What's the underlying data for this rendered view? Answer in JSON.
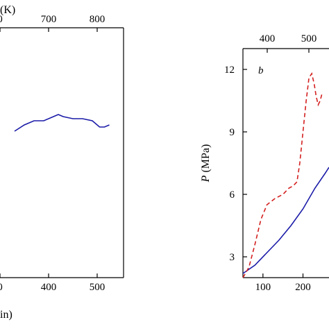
{
  "chart_data": [
    {
      "type": "line",
      "panel": "left (cropped)",
      "title": "",
      "top_axis_label_fragment": "(K)",
      "bottom_axis_label_fragment": "in)",
      "top_ticks": [
        "0",
        "700",
        "800"
      ],
      "bottom_ticks": [
        "0",
        "400",
        "500"
      ],
      "series": [
        {
          "color": "#1a1aa8",
          "style": "solid",
          "x": [
            330,
            350,
            370,
            390,
            410,
            420,
            430,
            450,
            470,
            490,
            505,
            515,
            525
          ],
          "values": [
            11.1,
            11.4,
            11.6,
            11.6,
            11.8,
            11.9,
            11.8,
            11.7,
            11.7,
            11.6,
            11.3,
            11.3,
            11.4
          ]
        }
      ]
    },
    {
      "type": "line",
      "panel": "b",
      "panel_label": "b",
      "ylabel_italic": "P",
      "ylabel_rest": " (MPa)",
      "top_ticks": [
        "400",
        "500"
      ],
      "bottom_ticks": [
        "100",
        "200"
      ],
      "y_ticks": [
        "3",
        "6",
        "9",
        "12"
      ],
      "xlim": [
        50,
        265
      ],
      "ylim": [
        2.0,
        13.0
      ],
      "series": [
        {
          "color": "#1a1aa8",
          "style": "solid",
          "x": [
            50,
            80,
            110,
            140,
            170,
            200,
            230,
            255,
            265
          ],
          "values": [
            2.2,
            2.6,
            3.2,
            3.8,
            4.5,
            5.3,
            6.3,
            7.0,
            7.3
          ]
        },
        {
          "color": "#d42020",
          "style": "dashed",
          "x": [
            50,
            65,
            80,
            95,
            110,
            130,
            150,
            165,
            175,
            185,
            192,
            200,
            208,
            215,
            222,
            228,
            233,
            238,
            243,
            247
          ],
          "values": [
            2.0,
            2.5,
            3.6,
            4.8,
            5.5,
            5.8,
            6.0,
            6.3,
            6.4,
            6.6,
            7.5,
            9.0,
            10.5,
            11.6,
            11.8,
            11.3,
            10.7,
            10.3,
            10.5,
            10.8
          ]
        }
      ]
    }
  ]
}
